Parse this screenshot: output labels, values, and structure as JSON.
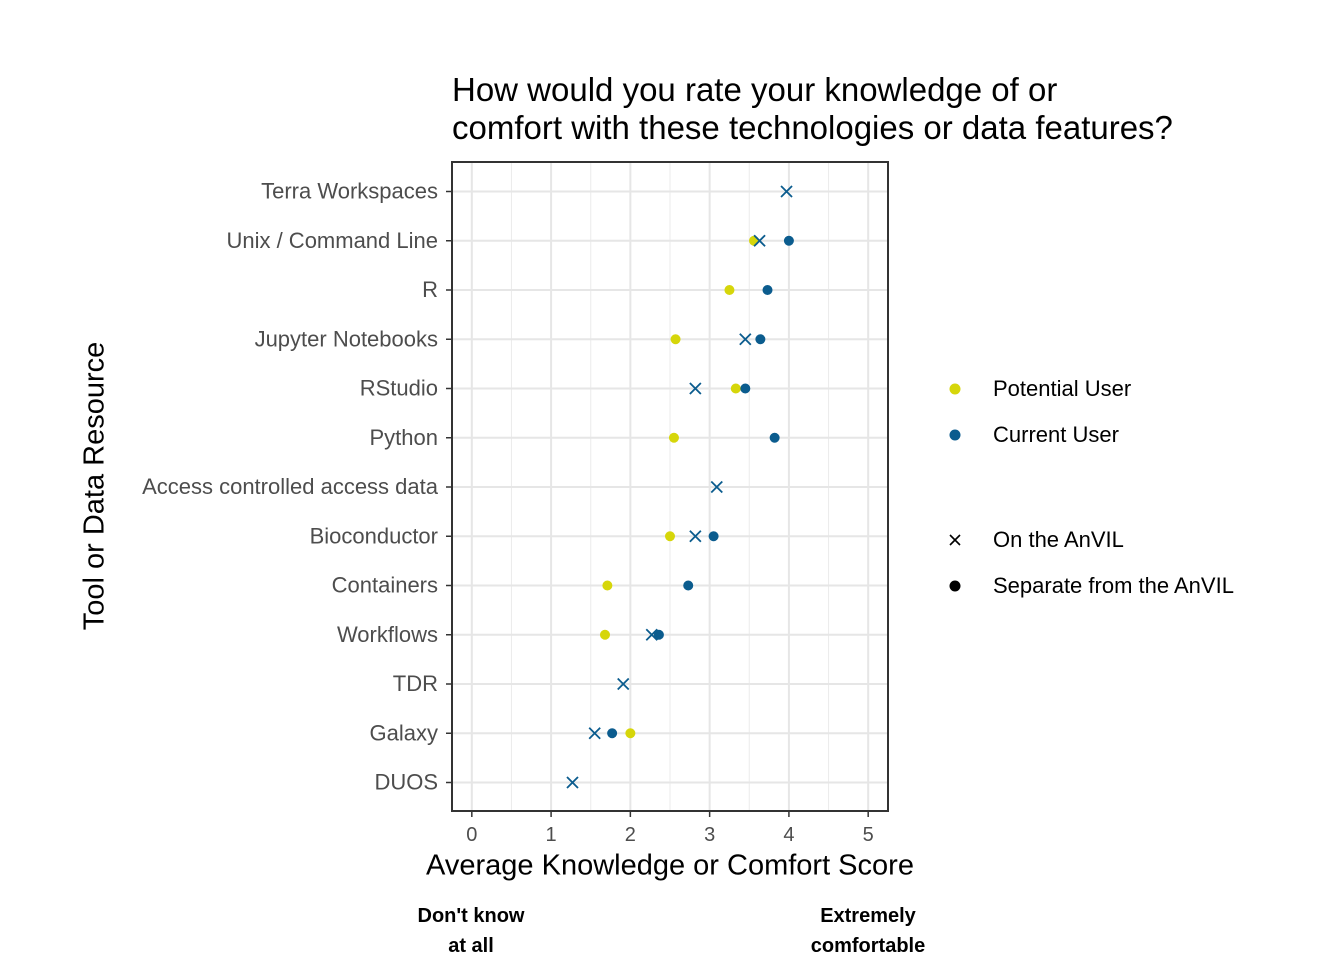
{
  "chart_data": {
    "type": "scatter",
    "title_lines": [
      "How would you rate your knowledge of or",
      "comfort with these technologies or data features?"
    ],
    "xlabel": "Average Knowledge or Comfort Score",
    "ylabel": "Tool or Data Resource",
    "xlim": [
      -0.25,
      5.25
    ],
    "x_ticks": [
      "0",
      "1",
      "2",
      "3",
      "4",
      "5"
    ],
    "x_anchor_low": [
      "Don't know",
      "at all"
    ],
    "x_anchor_high": [
      "Extremely",
      "comfortable"
    ],
    "grid": true,
    "categories": [
      "Terra Workspaces",
      "Unix / Command Line",
      "R",
      "Jupyter Notebooks",
      "RStudio",
      "Python",
      "Access controlled access data",
      "Bioconductor",
      "Containers",
      "Workflows",
      "TDR",
      "Galaxy",
      "DUOS"
    ],
    "colors": {
      "potential": "#d6d60a",
      "current": "#0b5c8e"
    },
    "legend": {
      "color_entries": [
        {
          "label": "Potential User",
          "color_key": "potential"
        },
        {
          "label": "Current User",
          "color_key": "current"
        }
      ],
      "shape_entries": [
        {
          "label": "On the AnVIL",
          "shape": "cross"
        },
        {
          "label": "Separate from the AnVIL",
          "shape": "circle"
        }
      ],
      "position": "right"
    },
    "points": [
      {
        "category": "Terra Workspaces",
        "x": 3.97,
        "user": "current",
        "where": "on"
      },
      {
        "category": "Unix / Command Line",
        "x": 3.56,
        "user": "potential",
        "where": "separate"
      },
      {
        "category": "Unix / Command Line",
        "x": 3.63,
        "user": "current",
        "where": "on"
      },
      {
        "category": "Unix / Command Line",
        "x": 4.0,
        "user": "current",
        "where": "separate"
      },
      {
        "category": "R",
        "x": 3.25,
        "user": "potential",
        "where": "separate"
      },
      {
        "category": "R",
        "x": 3.73,
        "user": "current",
        "where": "separate"
      },
      {
        "category": "Jupyter Notebooks",
        "x": 2.57,
        "user": "potential",
        "where": "separate"
      },
      {
        "category": "Jupyter Notebooks",
        "x": 3.45,
        "user": "current",
        "where": "on"
      },
      {
        "category": "Jupyter Notebooks",
        "x": 3.64,
        "user": "current",
        "where": "separate"
      },
      {
        "category": "RStudio",
        "x": 2.82,
        "user": "current",
        "where": "on"
      },
      {
        "category": "RStudio",
        "x": 3.33,
        "user": "potential",
        "where": "separate"
      },
      {
        "category": "RStudio",
        "x": 3.45,
        "user": "current",
        "where": "separate"
      },
      {
        "category": "Python",
        "x": 2.55,
        "user": "potential",
        "where": "separate"
      },
      {
        "category": "Python",
        "x": 3.82,
        "user": "current",
        "where": "separate"
      },
      {
        "category": "Access controlled access data",
        "x": 3.09,
        "user": "current",
        "where": "on"
      },
      {
        "category": "Bioconductor",
        "x": 2.5,
        "user": "potential",
        "where": "separate"
      },
      {
        "category": "Bioconductor",
        "x": 2.82,
        "user": "current",
        "where": "on"
      },
      {
        "category": "Bioconductor",
        "x": 3.05,
        "user": "current",
        "where": "separate"
      },
      {
        "category": "Containers",
        "x": 1.71,
        "user": "potential",
        "where": "separate"
      },
      {
        "category": "Containers",
        "x": 2.73,
        "user": "current",
        "where": "separate"
      },
      {
        "category": "Workflows",
        "x": 1.68,
        "user": "potential",
        "where": "separate"
      },
      {
        "category": "Workflows",
        "x": 2.27,
        "user": "current",
        "where": "on"
      },
      {
        "category": "Workflows",
        "x": 2.36,
        "user": "current",
        "where": "separate"
      },
      {
        "category": "TDR",
        "x": 1.91,
        "user": "current",
        "where": "on"
      },
      {
        "category": "Galaxy",
        "x": 1.55,
        "user": "current",
        "where": "on"
      },
      {
        "category": "Galaxy",
        "x": 1.77,
        "user": "current",
        "where": "separate"
      },
      {
        "category": "Galaxy",
        "x": 2.0,
        "user": "potential",
        "where": "separate"
      },
      {
        "category": "DUOS",
        "x": 1.27,
        "user": "current",
        "where": "on"
      }
    ]
  }
}
